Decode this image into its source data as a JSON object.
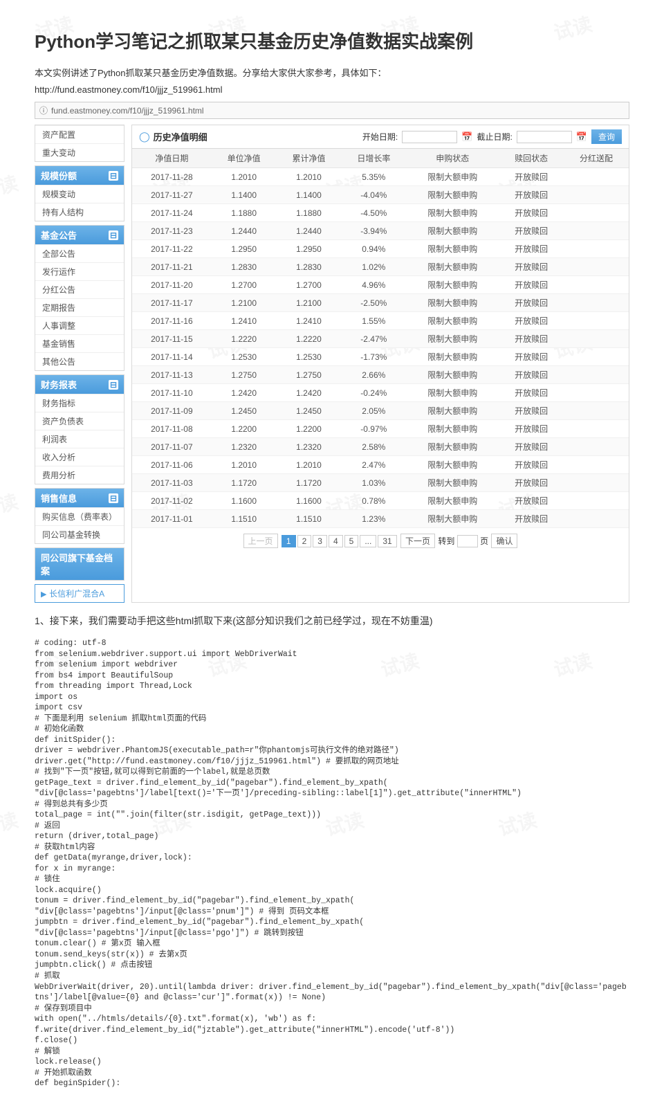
{
  "title": "Python学习笔记之抓取某只基金历史净值数据实战案例",
  "intro": "本文实例讲述了Python抓取某只基金历史净值数据。分享给大家供大家参考，具体如下：",
  "url_text": "http://fund.eastmoney.com/f10/jjjz_519961.html",
  "addr_bar": "fund.eastmoney.com/f10/jjjz_519961.html",
  "sidebar": {
    "top_items": [
      "资产配置",
      "重大变动"
    ],
    "block1": {
      "head": "规模份额",
      "items": [
        "规模变动",
        "持有人结构"
      ]
    },
    "block2": {
      "head": "基金公告",
      "items": [
        "全部公告",
        "发行运作",
        "分红公告",
        "定期报告",
        "人事调整",
        "基金销售",
        "其他公告"
      ]
    },
    "block3": {
      "head": "财务报表",
      "items": [
        "财务指标",
        "资产负债表",
        "利润表",
        "收入分析",
        "费用分析"
      ]
    },
    "block4": {
      "head": "销售信息",
      "items": [
        "购买信息（费率表）",
        "同公司基金转换"
      ]
    },
    "archive": "同公司旗下基金档案",
    "link": "长信利广混合A"
  },
  "panel": {
    "title": "历史净值明细",
    "start_label": "开始日期:",
    "end_label": "截止日期:",
    "query": "查询"
  },
  "table": {
    "headers": [
      "净值日期",
      "单位净值",
      "累计净值",
      "日增长率",
      "申购状态",
      "赎回状态",
      "分红送配"
    ],
    "rows": [
      [
        "2017-11-28",
        "1.2010",
        "1.2010",
        "5.35%",
        "限制大额申购",
        "开放赎回",
        ""
      ],
      [
        "2017-11-27",
        "1.1400",
        "1.1400",
        "-4.04%",
        "限制大额申购",
        "开放赎回",
        ""
      ],
      [
        "2017-11-24",
        "1.1880",
        "1.1880",
        "-4.50%",
        "限制大额申购",
        "开放赎回",
        ""
      ],
      [
        "2017-11-23",
        "1.2440",
        "1.2440",
        "-3.94%",
        "限制大额申购",
        "开放赎回",
        ""
      ],
      [
        "2017-11-22",
        "1.2950",
        "1.2950",
        "0.94%",
        "限制大额申购",
        "开放赎回",
        ""
      ],
      [
        "2017-11-21",
        "1.2830",
        "1.2830",
        "1.02%",
        "限制大额申购",
        "开放赎回",
        ""
      ],
      [
        "2017-11-20",
        "1.2700",
        "1.2700",
        "4.96%",
        "限制大额申购",
        "开放赎回",
        ""
      ],
      [
        "2017-11-17",
        "1.2100",
        "1.2100",
        "-2.50%",
        "限制大额申购",
        "开放赎回",
        ""
      ],
      [
        "2017-11-16",
        "1.2410",
        "1.2410",
        "1.55%",
        "限制大额申购",
        "开放赎回",
        ""
      ],
      [
        "2017-11-15",
        "1.2220",
        "1.2220",
        "-2.47%",
        "限制大额申购",
        "开放赎回",
        ""
      ],
      [
        "2017-11-14",
        "1.2530",
        "1.2530",
        "-1.73%",
        "限制大额申购",
        "开放赎回",
        ""
      ],
      [
        "2017-11-13",
        "1.2750",
        "1.2750",
        "2.66%",
        "限制大额申购",
        "开放赎回",
        ""
      ],
      [
        "2017-11-10",
        "1.2420",
        "1.2420",
        "-0.24%",
        "限制大额申购",
        "开放赎回",
        ""
      ],
      [
        "2017-11-09",
        "1.2450",
        "1.2450",
        "2.05%",
        "限制大额申购",
        "开放赎回",
        ""
      ],
      [
        "2017-11-08",
        "1.2200",
        "1.2200",
        "-0.97%",
        "限制大额申购",
        "开放赎回",
        ""
      ],
      [
        "2017-11-07",
        "1.2320",
        "1.2320",
        "2.58%",
        "限制大额申购",
        "开放赎回",
        ""
      ],
      [
        "2017-11-06",
        "1.2010",
        "1.2010",
        "2.47%",
        "限制大额申购",
        "开放赎回",
        ""
      ],
      [
        "2017-11-03",
        "1.1720",
        "1.1720",
        "1.03%",
        "限制大额申购",
        "开放赎回",
        ""
      ],
      [
        "2017-11-02",
        "1.1600",
        "1.1600",
        "0.78%",
        "限制大额申购",
        "开放赎回",
        ""
      ],
      [
        "2017-11-01",
        "1.1510",
        "1.1510",
        "1.23%",
        "限制大额申购",
        "开放赎回",
        ""
      ]
    ]
  },
  "pager": {
    "prev": "上一页",
    "pages": [
      "1",
      "2",
      "3",
      "4",
      "5",
      "...",
      "31"
    ],
    "next": "下一页",
    "goto": "转到",
    "page_suffix": "页",
    "confirm": "确认"
  },
  "step": "1、接下来，我们需要动手把这些html抓取下来(这部分知识我们之前已经学过，现在不妨重温)",
  "code": "# coding: utf-8\nfrom selenium.webdriver.support.ui import WebDriverWait\nfrom selenium import webdriver\nfrom bs4 import BeautifulSoup\nfrom threading import Thread,Lock\nimport os\nimport csv\n# 下面是利用 selenium 抓取html页面的代码\n# 初始化函数\ndef initSpider():\ndriver = webdriver.PhantomJS(executable_path=r\"你phantomjs可执行文件的绝对路径\")\ndriver.get(\"http://fund.eastmoney.com/f10/jjjz_519961.html\") # 要抓取的网页地址\n# 找到\"下一页\"按钮,就可以得到它前面的一个label,就是总页数\ngetPage_text = driver.find_element_by_id(\"pagebar\").find_element_by_xpath(\n\"div[@class='pagebtns']/label[text()='下一页']/preceding-sibling::label[1]\").get_attribute(\"innerHTML\")\n# 得到总共有多少页\ntotal_page = int(\"\".join(filter(str.isdigit, getPage_text)))\n# 返回\nreturn (driver,total_page)\n# 获取html内容\ndef getData(myrange,driver,lock):\nfor x in myrange:\n# 锁住\nlock.acquire()\ntonum = driver.find_element_by_id(\"pagebar\").find_element_by_xpath(\n\"div[@class='pagebtns']/input[@class='pnum']\") # 得到 页码文本框\njumpbtn = driver.find_element_by_id(\"pagebar\").find_element_by_xpath(\n\"div[@class='pagebtns']/input[@class='pgo']\") # 跳转到按钮\ntonum.clear() # 第x页 输入框\ntonum.send_keys(str(x)) # 去第x页\njumpbtn.click() # 点击按钮\n# 抓取\nWebDriverWait(driver, 20).until(lambda driver: driver.find_element_by_id(\"pagebar\").find_element_by_xpath(\"div[@class='pagebtns']/label[@value={0} and @class='cur']\".format(x)) != None)\n# 保存到项目中\nwith open(\"../htmls/details/{0}.txt\".format(x), 'wb') as f:\nf.write(driver.find_element_by_id(\"jztable\").get_attribute(\"innerHTML\").encode('utf-8'))\nf.close()\n# 解锁\nlock.release()\n# 开始抓取函数\ndef beginSpider():"
}
